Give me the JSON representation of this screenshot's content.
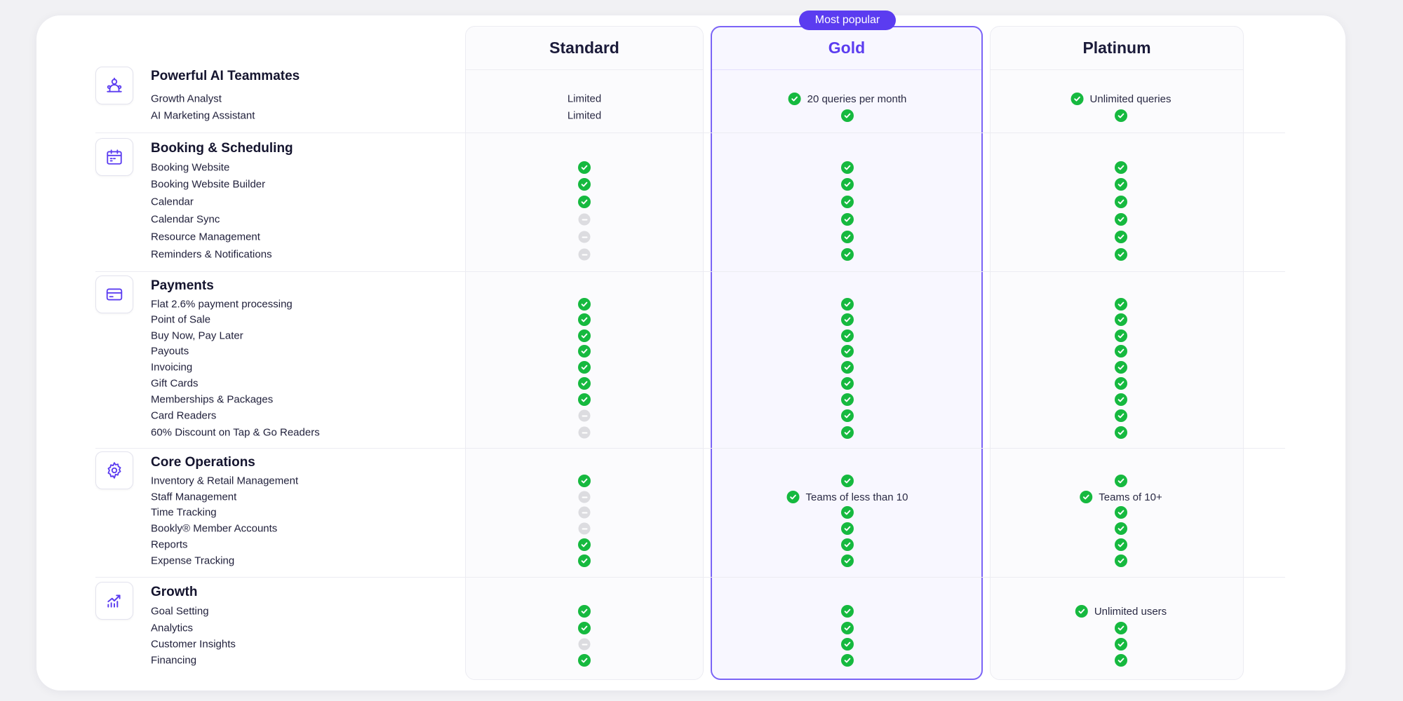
{
  "badge": "Most popular",
  "plans": [
    "Standard",
    "Gold",
    "Platinum"
  ],
  "colors": {
    "accent": "#5b3cf0",
    "check": "#16b93f",
    "unavailable": "#dcdce0"
  },
  "sections": [
    {
      "title": "Powerful AI Teammates",
      "icon": "ai-teammates-icon",
      "rows": [
        {
          "label": "Growth Analyst",
          "cells": [
            {
              "type": "text",
              "text": "Limited"
            },
            {
              "type": "check",
              "text": "20 queries per month"
            },
            {
              "type": "check",
              "text": "Unlimited queries"
            }
          ]
        },
        {
          "label": "AI Marketing Assistant",
          "cells": [
            {
              "type": "text",
              "text": "Limited"
            },
            {
              "type": "check"
            },
            {
              "type": "check"
            }
          ]
        }
      ]
    },
    {
      "title": "Booking & Scheduling",
      "icon": "calendar-icon",
      "rows": [
        {
          "label": "Booking Website",
          "cells": [
            {
              "type": "check"
            },
            {
              "type": "check"
            },
            {
              "type": "check"
            }
          ]
        },
        {
          "label": "Booking Website Builder",
          "cells": [
            {
              "type": "check"
            },
            {
              "type": "check"
            },
            {
              "type": "check"
            }
          ]
        },
        {
          "label": "Calendar",
          "cells": [
            {
              "type": "check"
            },
            {
              "type": "check"
            },
            {
              "type": "check"
            }
          ]
        },
        {
          "label": "Calendar Sync",
          "cells": [
            {
              "type": "dash"
            },
            {
              "type": "check"
            },
            {
              "type": "check"
            }
          ]
        },
        {
          "label": "Resource Management",
          "cells": [
            {
              "type": "dash"
            },
            {
              "type": "check"
            },
            {
              "type": "check"
            }
          ]
        },
        {
          "label": "Reminders & Notifications",
          "cells": [
            {
              "type": "dash"
            },
            {
              "type": "check"
            },
            {
              "type": "check"
            }
          ]
        }
      ]
    },
    {
      "title": "Payments",
      "icon": "credit-card-icon",
      "rows": [
        {
          "label": "Flat 2.6% payment processing",
          "cells": [
            {
              "type": "check"
            },
            {
              "type": "check"
            },
            {
              "type": "check"
            }
          ]
        },
        {
          "label": "Point of Sale",
          "cells": [
            {
              "type": "check"
            },
            {
              "type": "check"
            },
            {
              "type": "check"
            }
          ]
        },
        {
          "label": "Buy Now, Pay Later",
          "cells": [
            {
              "type": "check"
            },
            {
              "type": "check"
            },
            {
              "type": "check"
            }
          ]
        },
        {
          "label": "Payouts",
          "cells": [
            {
              "type": "check"
            },
            {
              "type": "check"
            },
            {
              "type": "check"
            }
          ]
        },
        {
          "label": "Invoicing",
          "cells": [
            {
              "type": "check"
            },
            {
              "type": "check"
            },
            {
              "type": "check"
            }
          ]
        },
        {
          "label": "Gift Cards",
          "cells": [
            {
              "type": "check"
            },
            {
              "type": "check"
            },
            {
              "type": "check"
            }
          ]
        },
        {
          "label": "Memberships & Packages",
          "cells": [
            {
              "type": "check"
            },
            {
              "type": "check"
            },
            {
              "type": "check"
            }
          ]
        },
        {
          "label": "Card Readers",
          "cells": [
            {
              "type": "dash"
            },
            {
              "type": "check"
            },
            {
              "type": "check"
            }
          ]
        },
        {
          "label": "60% Discount on Tap & Go Readers",
          "cells": [
            {
              "type": "dash"
            },
            {
              "type": "check"
            },
            {
              "type": "check"
            }
          ]
        }
      ]
    },
    {
      "title": "Core Operations",
      "icon": "gear-icon",
      "rows": [
        {
          "label": "Inventory & Retail Management",
          "cells": [
            {
              "type": "check"
            },
            {
              "type": "check"
            },
            {
              "type": "check"
            }
          ]
        },
        {
          "label": "Staff Management",
          "cells": [
            {
              "type": "dash"
            },
            {
              "type": "check",
              "text": "Teams of less than 10"
            },
            {
              "type": "check",
              "text": "Teams of 10+"
            }
          ]
        },
        {
          "label": "Time Tracking",
          "cells": [
            {
              "type": "dash"
            },
            {
              "type": "check"
            },
            {
              "type": "check"
            }
          ]
        },
        {
          "label": "Bookly® Member Accounts",
          "cells": [
            {
              "type": "dash"
            },
            {
              "type": "check"
            },
            {
              "type": "check"
            }
          ]
        },
        {
          "label": "Reports",
          "cells": [
            {
              "type": "check"
            },
            {
              "type": "check"
            },
            {
              "type": "check"
            }
          ]
        },
        {
          "label": "Expense Tracking",
          "cells": [
            {
              "type": "check"
            },
            {
              "type": "check"
            },
            {
              "type": "check"
            }
          ]
        }
      ]
    },
    {
      "title": "Growth",
      "icon": "growth-chart-icon",
      "rows": [
        {
          "label": "Goal Setting",
          "cells": [
            {
              "type": "check"
            },
            {
              "type": "check"
            },
            {
              "type": "check",
              "text": "Unlimited users"
            }
          ]
        },
        {
          "label": "Analytics",
          "cells": [
            {
              "type": "check"
            },
            {
              "type": "check"
            },
            {
              "type": "check"
            }
          ]
        },
        {
          "label": "Customer Insights",
          "cells": [
            {
              "type": "dash"
            },
            {
              "type": "check"
            },
            {
              "type": "check"
            }
          ]
        },
        {
          "label": "Financing",
          "cells": [
            {
              "type": "check"
            },
            {
              "type": "check"
            },
            {
              "type": "check"
            }
          ]
        }
      ]
    }
  ]
}
